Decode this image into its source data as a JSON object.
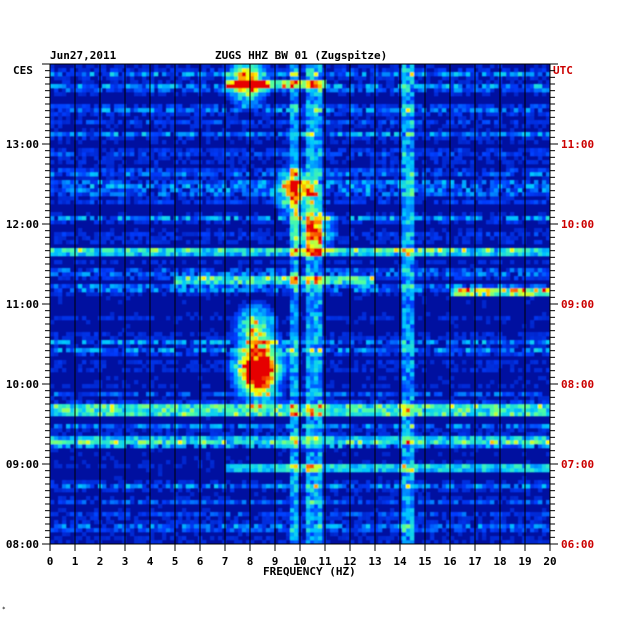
{
  "header": {
    "date": "Jun27,2011",
    "station": "ZUGS HHZ BW 01 (Zugspitze)"
  },
  "stamp": "*",
  "colors": {
    "background": "#0010a0",
    "left_axis_text": "#000000",
    "right_axis_text": "#cc0000"
  },
  "chart_data": {
    "type": "heatmap",
    "xlabel": "FREQUENCY (HZ)",
    "xlim": [
      0,
      20
    ],
    "x_ticks": [
      "0",
      "1",
      "2",
      "3",
      "4",
      "5",
      "6",
      "7",
      "8",
      "9",
      "10",
      "11",
      "12",
      "13",
      "14",
      "15",
      "16",
      "17",
      "18",
      "19",
      "20"
    ],
    "left_axis": {
      "timezone": "CES",
      "ticks": [
        {
          "label": "08:00",
          "hour": 8
        },
        {
          "label": "09:00",
          "hour": 9
        },
        {
          "label": "10:00",
          "hour": 10
        },
        {
          "label": "11:00",
          "hour": 11
        },
        {
          "label": "12:00",
          "hour": 12
        },
        {
          "label": "13:00",
          "hour": 13
        }
      ],
      "ylim": [
        8,
        14.0
      ]
    },
    "right_axis": {
      "timezone": "UTC",
      "ticks": [
        {
          "label": "06:00",
          "hour": 6
        },
        {
          "label": "07:00",
          "hour": 7
        },
        {
          "label": "08:00",
          "hour": 8
        },
        {
          "label": "09:00",
          "hour": 9
        },
        {
          "label": "10:00",
          "hour": 10
        },
        {
          "label": "11:00",
          "hour": 11
        }
      ]
    },
    "constant_lines_hz": [
      9.8,
      10.4,
      10.7,
      14.3
    ],
    "strong_bands": [
      {
        "hour": 9.68,
        "fmin": 0,
        "fmax": 20,
        "level": 0.55
      },
      {
        "hour": 9.3,
        "fmin": 0,
        "fmax": 20,
        "level": 0.45
      },
      {
        "hour": 11.65,
        "fmin": 0,
        "fmax": 20,
        "level": 0.45
      },
      {
        "hour": 11.3,
        "fmin": 5,
        "fmax": 13,
        "level": 0.55
      },
      {
        "hour": 11.15,
        "fmin": 16,
        "fmax": 20,
        "level": 0.6
      },
      {
        "hour": 8.95,
        "fmin": 7,
        "fmax": 20,
        "level": 0.45
      },
      {
        "hour": 13.75,
        "fmin": 7,
        "fmax": 11,
        "level": 0.6
      }
    ],
    "hotspots": [
      {
        "hour": 10.2,
        "f": 8.0,
        "level": 0.9
      },
      {
        "hour": 10.3,
        "f": 8.7,
        "level": 0.85
      },
      {
        "hour": 10.7,
        "f": 8.2,
        "level": 0.85
      },
      {
        "hour": 10.0,
        "f": 8.4,
        "level": 0.8
      },
      {
        "hour": 12.4,
        "f": 9.8,
        "level": 0.9
      },
      {
        "hour": 13.78,
        "f": 7.9,
        "level": 0.95
      },
      {
        "hour": 11.9,
        "f": 10.5,
        "level": 0.8
      }
    ]
  }
}
